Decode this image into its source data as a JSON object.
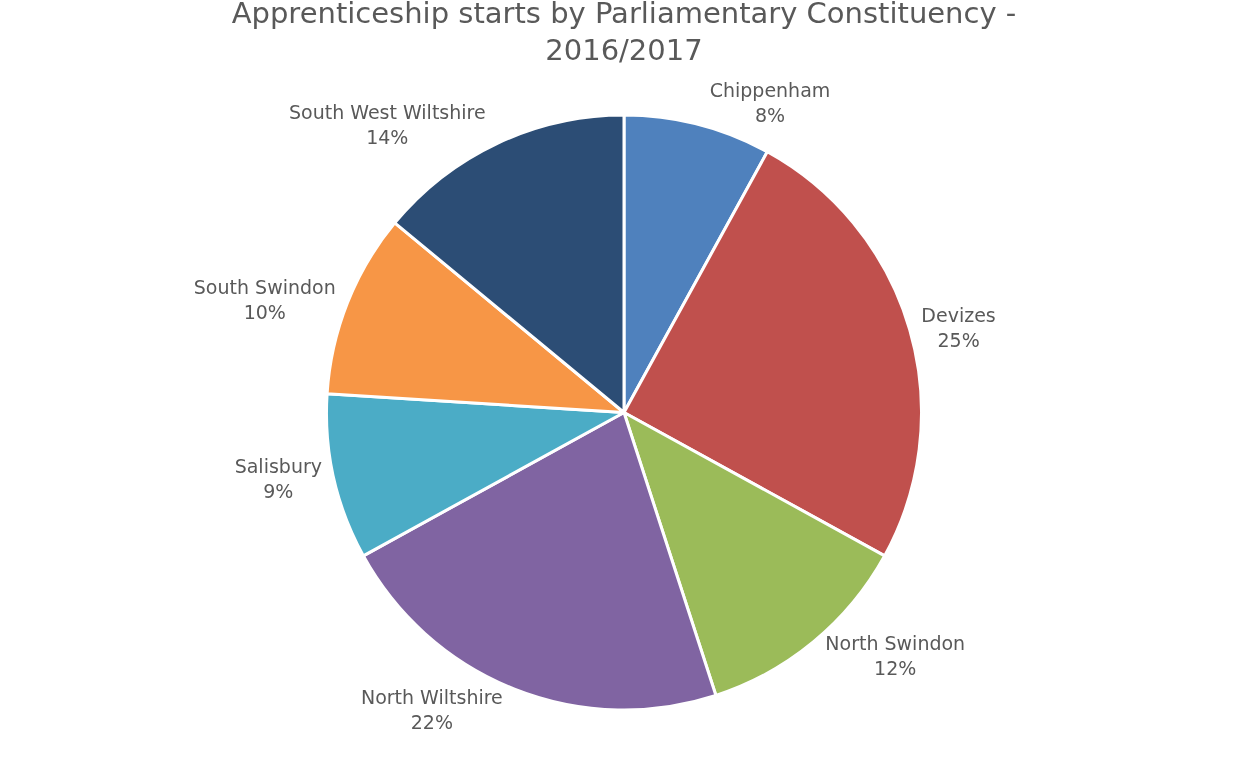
{
  "chart_data": {
    "type": "pie",
    "title": "Apprenticeship starts by Parliamentary Constituency - 2016/2017",
    "categories": [
      "Chippenham",
      "Devizes",
      "North Swindon",
      "North Wiltshire",
      "Salisbury",
      "South Swindon",
      "South West Wiltshire"
    ],
    "values": [
      8,
      25,
      12,
      22,
      9,
      10,
      14
    ],
    "value_labels": [
      "8%",
      "25%",
      "12%",
      "22%",
      "9%",
      "10%",
      "14%"
    ],
    "colors": [
      "#4f81bd",
      "#c0504d",
      "#9bbb59",
      "#8064a2",
      "#4bacc6",
      "#f79646",
      "#2c4d75"
    ],
    "legend": false
  }
}
